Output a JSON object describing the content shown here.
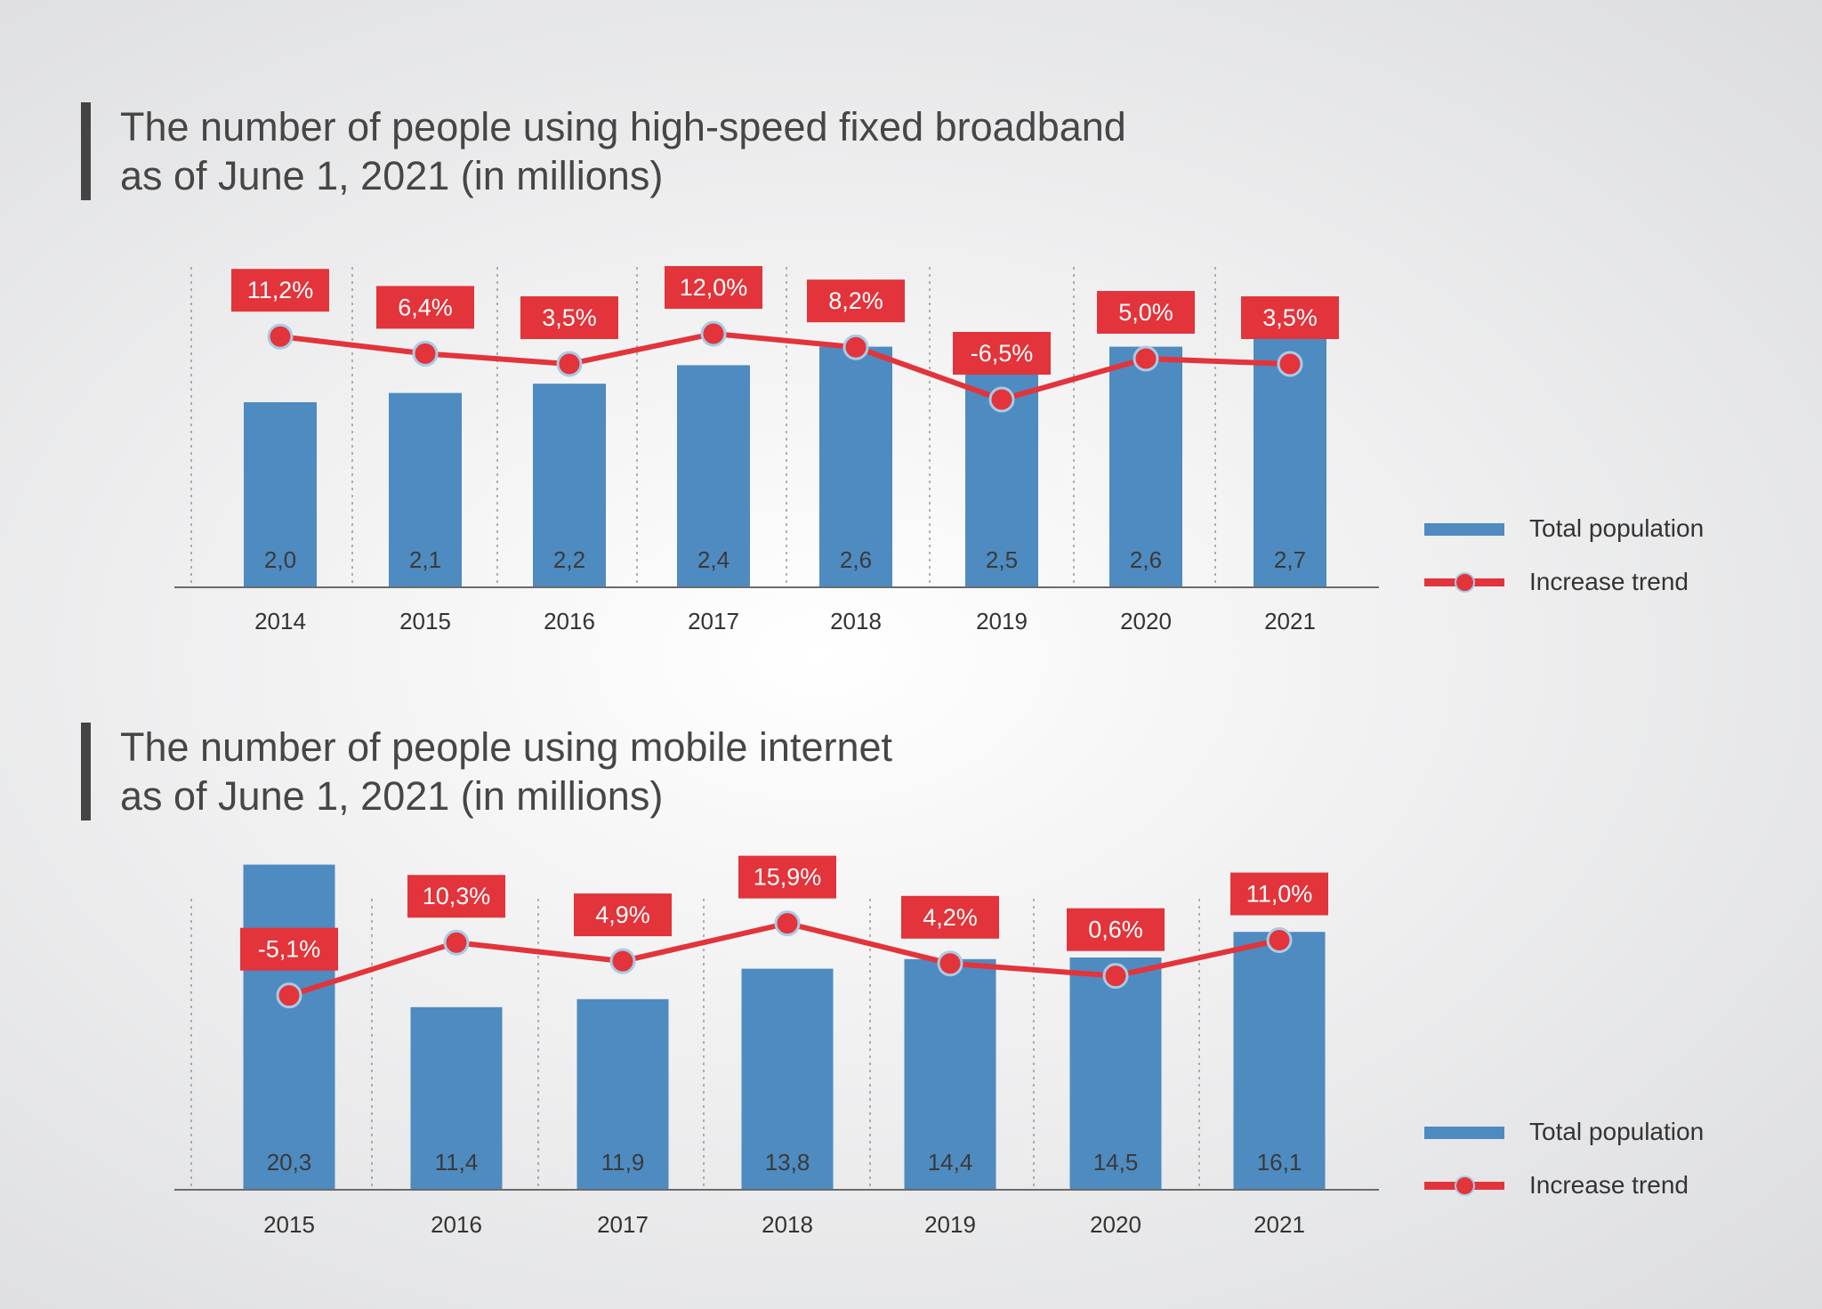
{
  "colors": {
    "bar": "#4e8bc0",
    "trend": "#e2343a",
    "marker_ring": "#a8cbe6",
    "text": "#444444"
  },
  "chart_data": [
    {
      "type": "bar+line",
      "title_lines": [
        "The number of people using high-speed fixed broadband",
        "as of June 1, 2021 (in millions)"
      ],
      "categories": [
        "2014",
        "2015",
        "2016",
        "2017",
        "2018",
        "2019",
        "2020",
        "2021"
      ],
      "series": [
        {
          "name": "Total population",
          "type": "bar",
          "values": [
            2.0,
            2.1,
            2.2,
            2.4,
            2.6,
            2.5,
            2.6,
            2.7
          ],
          "labels": [
            "2,0",
            "2,1",
            "2,2",
            "2,4",
            "2,6",
            "2,5",
            "2,6",
            "2,7"
          ]
        },
        {
          "name": "Increase trend",
          "type": "line",
          "values": [
            11.2,
            6.4,
            3.5,
            12.0,
            8.2,
            -6.5,
            5.0,
            3.5
          ],
          "labels": [
            "11,2%",
            "6,4%",
            "3,5%",
            "12,0%",
            "8,2%",
            "-6,5%",
            "5,0%",
            "3,5%"
          ]
        }
      ],
      "grid": "vertical dotted",
      "legend": "right",
      "legend_items": [
        "Total population",
        "Increase trend"
      ]
    },
    {
      "type": "bar+line",
      "title_lines": [
        "The number of people using mobile internet",
        "as of June 1, 2021 (in millions)"
      ],
      "categories": [
        "2015",
        "2016",
        "2017",
        "2018",
        "2019",
        "2020",
        "2021"
      ],
      "series": [
        {
          "name": "Total population",
          "type": "bar",
          "values": [
            20.3,
            11.4,
            11.9,
            13.8,
            14.4,
            14.5,
            16.1
          ],
          "labels": [
            "20,3",
            "11,4",
            "11,9",
            "13,8",
            "14,4",
            "14,5",
            "16,1"
          ]
        },
        {
          "name": "Increase trend",
          "type": "line",
          "values": [
            -5.1,
            10.3,
            4.9,
            15.9,
            4.2,
            0.6,
            11.0
          ],
          "labels": [
            "-5,1%",
            "10,3%",
            "4,9%",
            "15,9%",
            "4,2%",
            "0,6%",
            "11,0%"
          ]
        }
      ],
      "grid": "vertical dotted",
      "legend": "right",
      "legend_items": [
        "Total population",
        "Increase trend"
      ]
    }
  ]
}
